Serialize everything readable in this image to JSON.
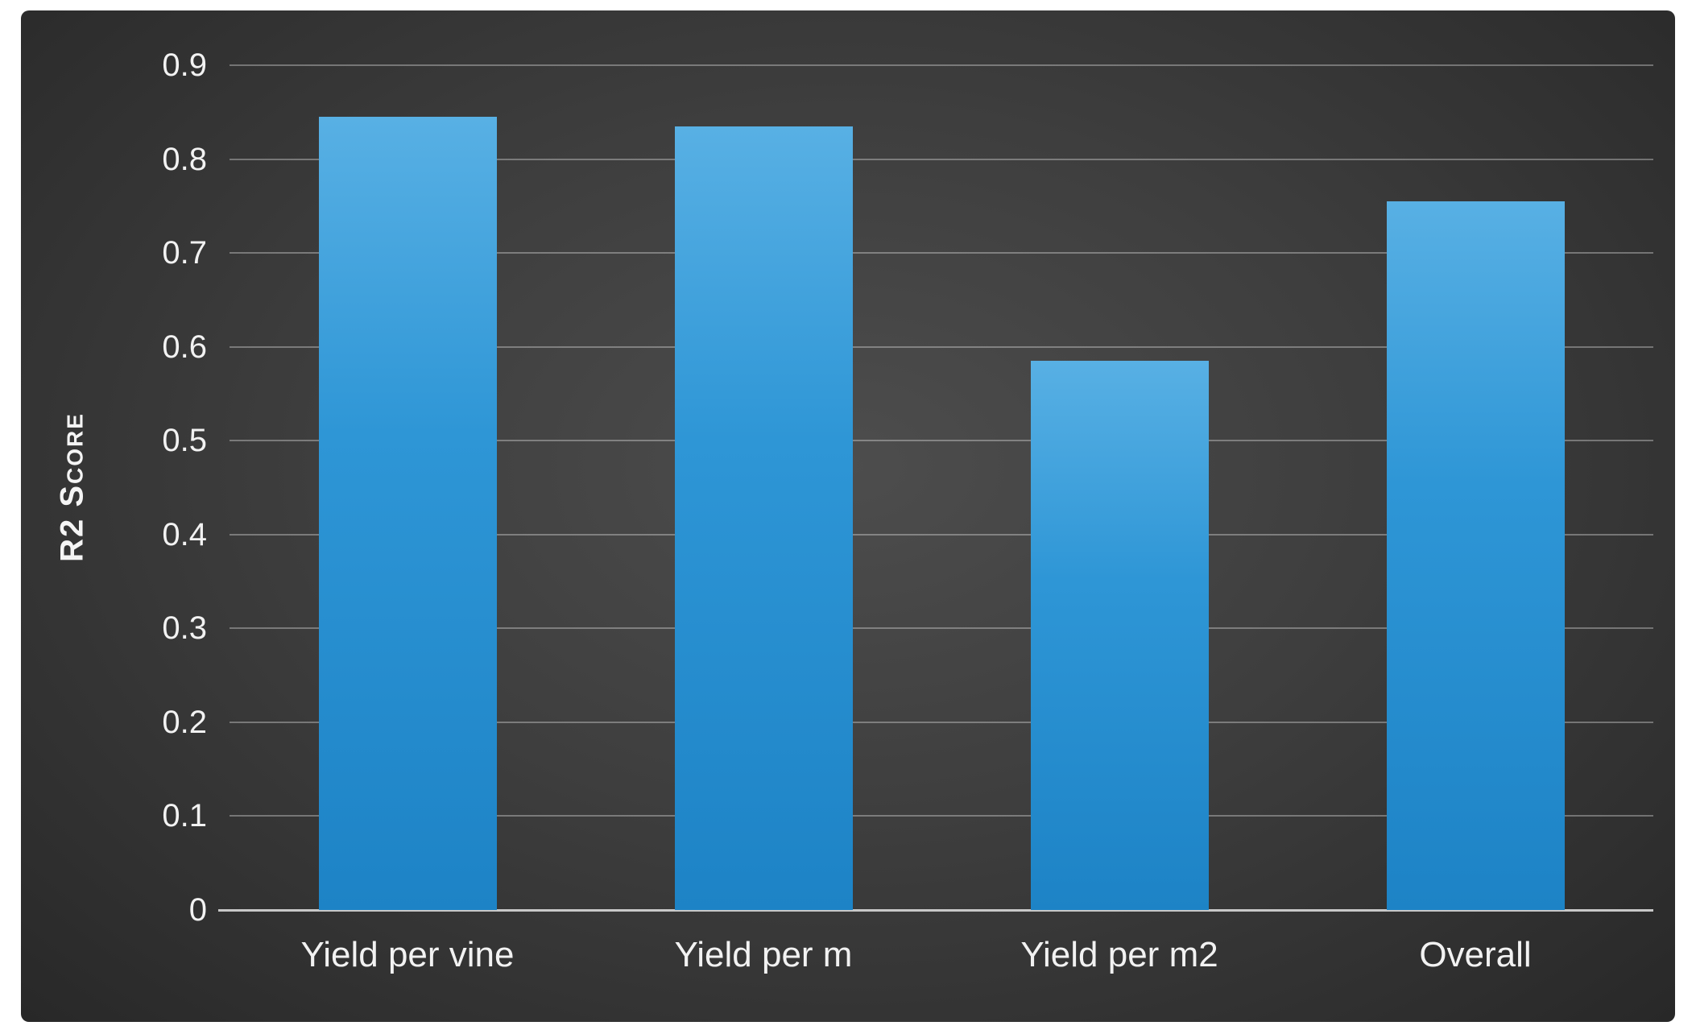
{
  "chart_data": {
    "type": "bar",
    "title": "",
    "xlabel": "",
    "ylabel": "R2 Score",
    "categories": [
      "Yield per vine",
      "Yield per m",
      "Yield per m2",
      "Overall"
    ],
    "values": [
      0.845,
      0.835,
      0.585,
      0.755
    ],
    "ylim": [
      0,
      0.9
    ],
    "yticks": [
      0,
      0.1,
      0.2,
      0.3,
      0.4,
      0.5,
      0.6,
      0.7,
      0.8,
      0.9
    ],
    "ytick_labels": [
      "0",
      "0.1",
      "0.2",
      "0.3",
      "0.4",
      "0.5",
      "0.6",
      "0.7",
      "0.8",
      "0.9"
    ],
    "grid": true,
    "legend": false,
    "colors": {
      "bar_top": "#58B0E4",
      "bar_mid": "#2E96D6",
      "bar_bottom": "#1D83C6",
      "background_center": "#4D4D4D",
      "background_mid": "#3E3E3E",
      "background_edge": "#282828",
      "gridline": "rgba(255,255,255,0.32)",
      "axis_line": "#C8C8C8",
      "tick_label": "#F2F2F2",
      "page_background": "#FFFFFF"
    }
  }
}
